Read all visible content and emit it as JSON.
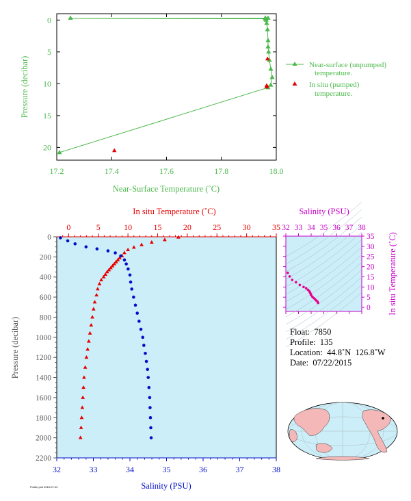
{
  "chart_data": [
    {
      "type": "line",
      "xlabel": "Near-Surface Temperature (˚C)",
      "ylabel": "Pressure (decibar)",
      "xlim": [
        17.2,
        18.0
      ],
      "ylim": [
        22,
        -1
      ],
      "xticks": [
        "17.2",
        "17.4",
        "17.6",
        "17.8",
        "18.0"
      ],
      "yticks": [
        "0",
        "5",
        "10",
        "15",
        "20"
      ],
      "colors": {
        "near_surface": "#4cb84c",
        "in_situ": "#e60000",
        "axis": "#4cb84c"
      },
      "legend": {
        "position": "right",
        "entries": [
          "Near-surface (unpumped)\ntemperature.",
          "In situ (pumped)\ntemperature."
        ]
      },
      "series": [
        {
          "name": "Near-surface (unpumped) temperature.",
          "marker": "triangle",
          "x": [
            17.21,
            17.97,
            17.98,
            17.985,
            17.98,
            17.975,
            17.972,
            17.97,
            17.97,
            17.968,
            17.965,
            17.963,
            17.962,
            17.96,
            17.96,
            17.25,
            17.96,
            17.97
          ],
          "y": [
            20.8,
            10.6,
            10.2,
            9.0,
            7.7,
            6.3,
            5.0,
            4.2,
            3.2,
            1.5,
            0.5,
            0.0,
            -0.2,
            -0.3,
            -0.2,
            -0.3,
            -0.3,
            -0.3
          ]
        },
        {
          "name": "In situ (pumped) temperature.",
          "marker": "triangle",
          "x": [
            17.41,
            17.965,
            17.965,
            17.968
          ],
          "y": [
            20.5,
            10.5,
            10.3,
            6.1
          ]
        }
      ]
    },
    {
      "type": "scatter",
      "title_top": "In situ Temperature (˚C)",
      "xlabel_bottom": "Salinity (PSU)",
      "ylabel": "Pressure (decibar)",
      "temp_xlim": [
        -2,
        35
      ],
      "sal_xlim": [
        32,
        38
      ],
      "ylim": [
        2200,
        0
      ],
      "temp_ticks": [
        "0",
        "5",
        "10",
        "15",
        "20",
        "25",
        "30",
        "35"
      ],
      "sal_ticks": [
        "32",
        "33",
        "34",
        "35",
        "36",
        "37",
        "38"
      ],
      "yticks": [
        "0",
        "200",
        "400",
        "600",
        "800",
        "1000",
        "1200",
        "1400",
        "1600",
        "1800",
        "2000",
        "2200"
      ],
      "colors": {
        "background": "#cceef8",
        "temperature": "#e60000",
        "salinity": "#0010c8",
        "axis_left": "#555555"
      },
      "series": [
        {
          "name": "temperature",
          "x": [
            18.5,
            16.2,
            14.0,
            12.3,
            11.0,
            10.0,
            9.4,
            9.0,
            8.6,
            8.3,
            8.0,
            7.7,
            7.4,
            7.1,
            6.8,
            6.5,
            6.2,
            5.9,
            5.5,
            5.2,
            4.9,
            4.7,
            4.4,
            4.2,
            4.0,
            3.8,
            3.6,
            3.4,
            3.2,
            3.0,
            2.8,
            2.6,
            2.5,
            2.4,
            2.3,
            2.2,
            2.1,
            2.0
          ],
          "y": [
            5,
            30,
            55,
            80,
            105,
            130,
            160,
            190,
            210,
            230,
            250,
            270,
            290,
            310,
            330,
            350,
            375,
            400,
            430,
            470,
            520,
            580,
            650,
            720,
            800,
            880,
            960,
            1040,
            1120,
            1200,
            1300,
            1400,
            1500,
            1600,
            1700,
            1800,
            1900,
            2000
          ]
        },
        {
          "name": "salinity",
          "x": [
            32.1,
            32.3,
            32.5,
            32.8,
            33.1,
            33.4,
            33.6,
            33.75,
            33.85,
            33.9,
            33.95,
            34.0,
            34.02,
            34.05,
            34.1,
            34.15,
            34.2,
            34.25,
            34.3,
            34.35,
            34.38,
            34.42,
            34.45,
            34.48,
            34.5,
            34.52,
            34.54,
            34.55,
            34.56,
            34.57,
            34.58
          ],
          "y": [
            10,
            40,
            70,
            100,
            120,
            140,
            160,
            190,
            230,
            270,
            320,
            380,
            450,
            520,
            600,
            680,
            760,
            840,
            920,
            1000,
            1080,
            1160,
            1240,
            1320,
            1400,
            1500,
            1600,
            1700,
            1800,
            1900,
            2000
          ]
        }
      ]
    },
    {
      "type": "scatter",
      "title_top": "Salinity (PSU)",
      "ylabel_right": "In situ Temperature (˚C)",
      "sal_xlim": [
        32,
        38
      ],
      "temp_ylim": [
        -2,
        35
      ],
      "sal_ticks": [
        "32",
        "33",
        "34",
        "35",
        "36",
        "37",
        "38"
      ],
      "temp_ticks": [
        "0",
        "5",
        "10",
        "15",
        "20",
        "25",
        "30",
        "35"
      ],
      "colors": {
        "background": "#cceef8",
        "points": "#e6008c",
        "axis": "#c800c8"
      },
      "series": [
        {
          "name": "ts",
          "x": [
            32.15,
            32.3,
            32.5,
            32.8,
            33.1,
            33.4,
            33.6,
            33.75,
            33.85,
            33.9,
            33.95,
            34.0,
            34.1,
            34.2,
            34.3,
            34.4,
            34.5,
            34.55
          ],
          "y": [
            17.0,
            15.2,
            13.5,
            12.3,
            11.0,
            10.0,
            9.4,
            8.6,
            8.0,
            7.4,
            6.8,
            6.0,
            5.2,
            4.6,
            4.0,
            3.4,
            2.8,
            2.2
          ]
        }
      ]
    }
  ],
  "info": {
    "float": "Float:  7850",
    "profile": "Profile:  135",
    "location": "Location:  44.8˚N  126.8˚W",
    "date": "Date:  07/22/2015"
  },
  "footer": "Profile plot 2015-07-22"
}
